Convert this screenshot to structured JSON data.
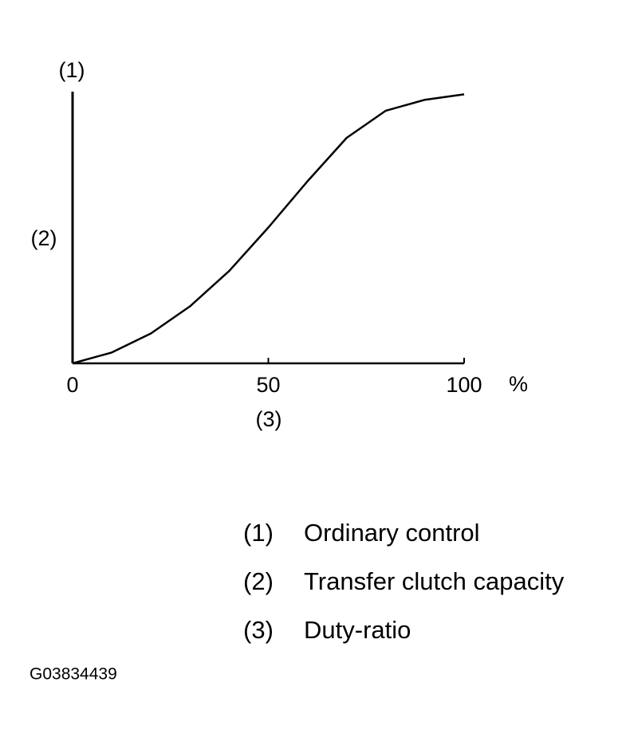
{
  "chart_data": {
    "type": "line",
    "top_label": "(1)",
    "y_label": "(2)",
    "x_label": "(3)",
    "x_unit": "%",
    "x": [
      0,
      10,
      20,
      30,
      40,
      50,
      60,
      70,
      80,
      90,
      100
    ],
    "values": [
      0,
      4,
      11,
      21,
      34,
      50,
      67,
      83,
      93,
      97,
      99
    ],
    "color": "#000000",
    "xlim": [
      0,
      100
    ],
    "xticks": [
      0,
      50,
      100
    ],
    "ylim": [
      0,
      100
    ]
  },
  "legend_items": [
    {
      "key": "(1)",
      "text": "Ordinary control"
    },
    {
      "key": "(2)",
      "text": "Transfer clutch capacity"
    },
    {
      "key": "(3)",
      "text": "Duty-ratio"
    }
  ],
  "figure_id": "G03834439"
}
